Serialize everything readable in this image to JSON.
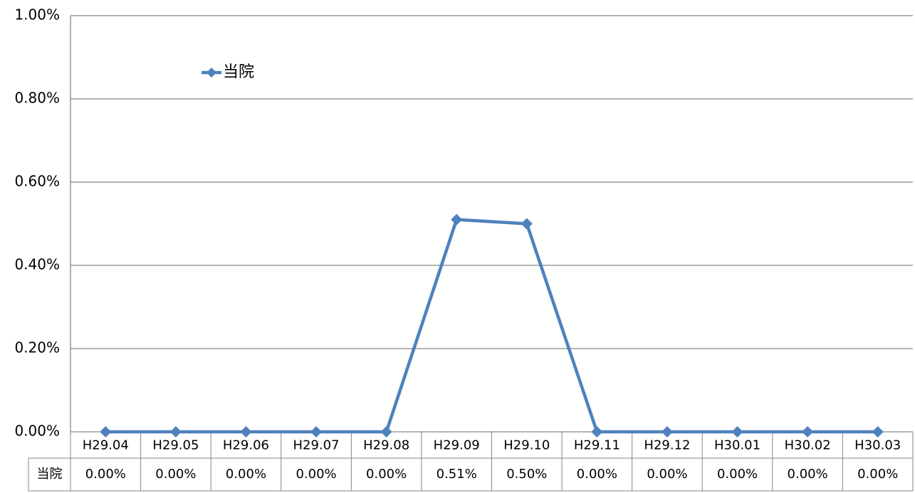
{
  "chart_data": {
    "type": "line",
    "categories": [
      "H29.04",
      "H29.05",
      "H29.06",
      "H29.07",
      "H29.08",
      "H29.09",
      "H29.10",
      "H29.11",
      "H29.12",
      "H30.01",
      "H30.02",
      "H30.03"
    ],
    "series": [
      {
        "name": "当院",
        "color": "#4f81bd",
        "values": [
          0,
          0,
          0,
          0,
          0,
          0.51,
          0.5,
          0,
          0,
          0,
          0,
          0
        ],
        "value_labels": [
          "0.00%",
          "0.00%",
          "0.00%",
          "0.00%",
          "0.00%",
          "0.51%",
          "0.50%",
          "0.00%",
          "0.00%",
          "0.00%",
          "0.00%",
          "0.00%"
        ]
      }
    ],
    "ylim": [
      0,
      1
    ],
    "yticks": [
      {
        "value": 0,
        "label": "0.00%"
      },
      {
        "value": 0.2,
        "label": "0.20%"
      },
      {
        "value": 0.4,
        "label": "0.40%"
      },
      {
        "value": 0.6,
        "label": "0.60%"
      },
      {
        "value": 0.8,
        "label": "0.80%"
      },
      {
        "value": 1,
        "label": "1.00%"
      }
    ],
    "grid": true,
    "legend": "top-left",
    "data_table": true
  }
}
